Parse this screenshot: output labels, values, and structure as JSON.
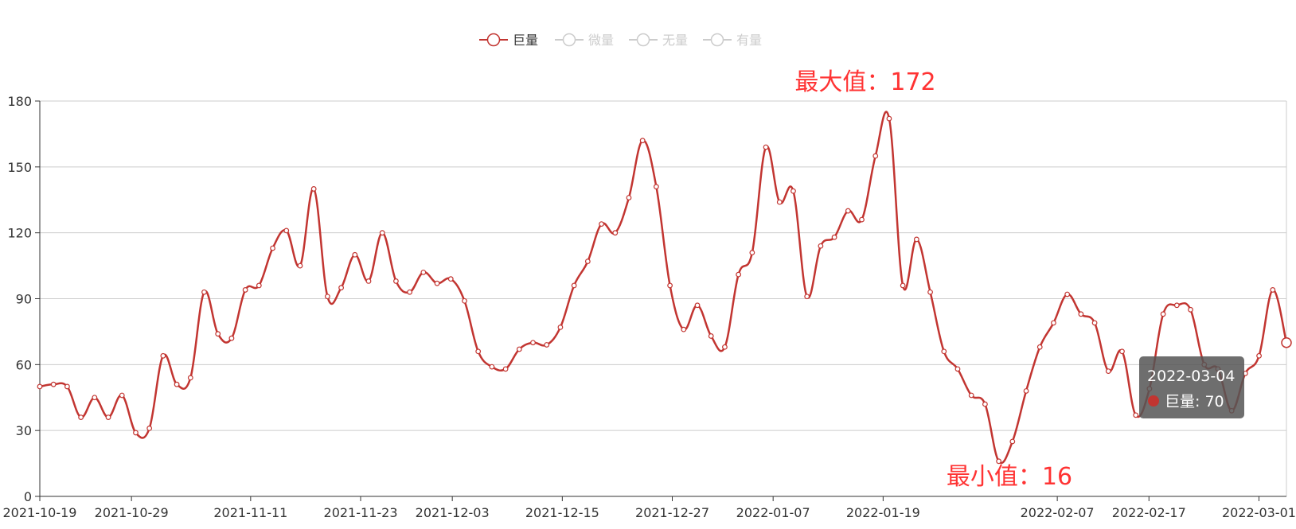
{
  "colors": {
    "series": "#c23531",
    "legend_inactive": "#cccccc",
    "legend_text_active": "#333333",
    "grid": "#cccccc",
    "axis": "#333333",
    "extreme_label": "#ff3333",
    "tooltip_bg": "#555555"
  },
  "legend": {
    "items": [
      {
        "label": "巨量",
        "active": true
      },
      {
        "label": "微量",
        "active": false
      },
      {
        "label": "无量",
        "active": false
      },
      {
        "label": "有量",
        "active": false
      }
    ]
  },
  "max_label": "最大值：172",
  "min_label": "最小值：16",
  "tooltip": {
    "date": "2022-03-04",
    "series": "巨量",
    "value_text": "巨量: 70",
    "value": 70
  },
  "chart_data": {
    "type": "line",
    "smooth": true,
    "grid": true,
    "legend_position": "top-center",
    "x_start": "2021-10-19",
    "x_end": "2022-03-04",
    "x_ticks": [
      "2021-10-19",
      "2021-10-29",
      "2021-11-11",
      "2021-11-23",
      "2021-12-03",
      "2021-12-15",
      "2021-12-27",
      "2022-01-07",
      "2022-01-19",
      "2022-02-07",
      "2022-02-17",
      "2022-03-01"
    ],
    "ylim": [
      0,
      180
    ],
    "y_ticks": [
      0,
      30,
      60,
      90,
      120,
      150,
      180
    ],
    "series": [
      {
        "name": "巨量",
        "values": [
          50,
          51,
          50,
          36,
          45,
          36,
          46,
          29,
          31,
          64,
          51,
          54,
          93,
          74,
          72,
          94,
          96,
          113,
          121,
          105,
          140,
          91,
          95,
          110,
          98,
          120,
          98,
          93,
          102,
          97,
          99,
          89,
          66,
          59,
          58,
          67,
          70,
          69,
          77,
          96,
          107,
          124,
          120,
          136,
          162,
          141,
          96,
          76,
          87,
          73,
          68,
          101,
          111,
          159,
          134,
          139,
          91,
          114,
          118,
          130,
          126,
          155,
          172,
          96,
          117,
          93,
          66,
          58,
          46,
          42,
          16,
          25,
          48,
          68,
          79,
          92,
          83,
          79,
          57,
          66,
          37,
          49,
          83,
          87,
          85,
          60,
          58,
          39,
          56,
          64,
          94,
          70
        ]
      }
    ],
    "max": {
      "value": 172
    },
    "min": {
      "value": 16
    }
  }
}
